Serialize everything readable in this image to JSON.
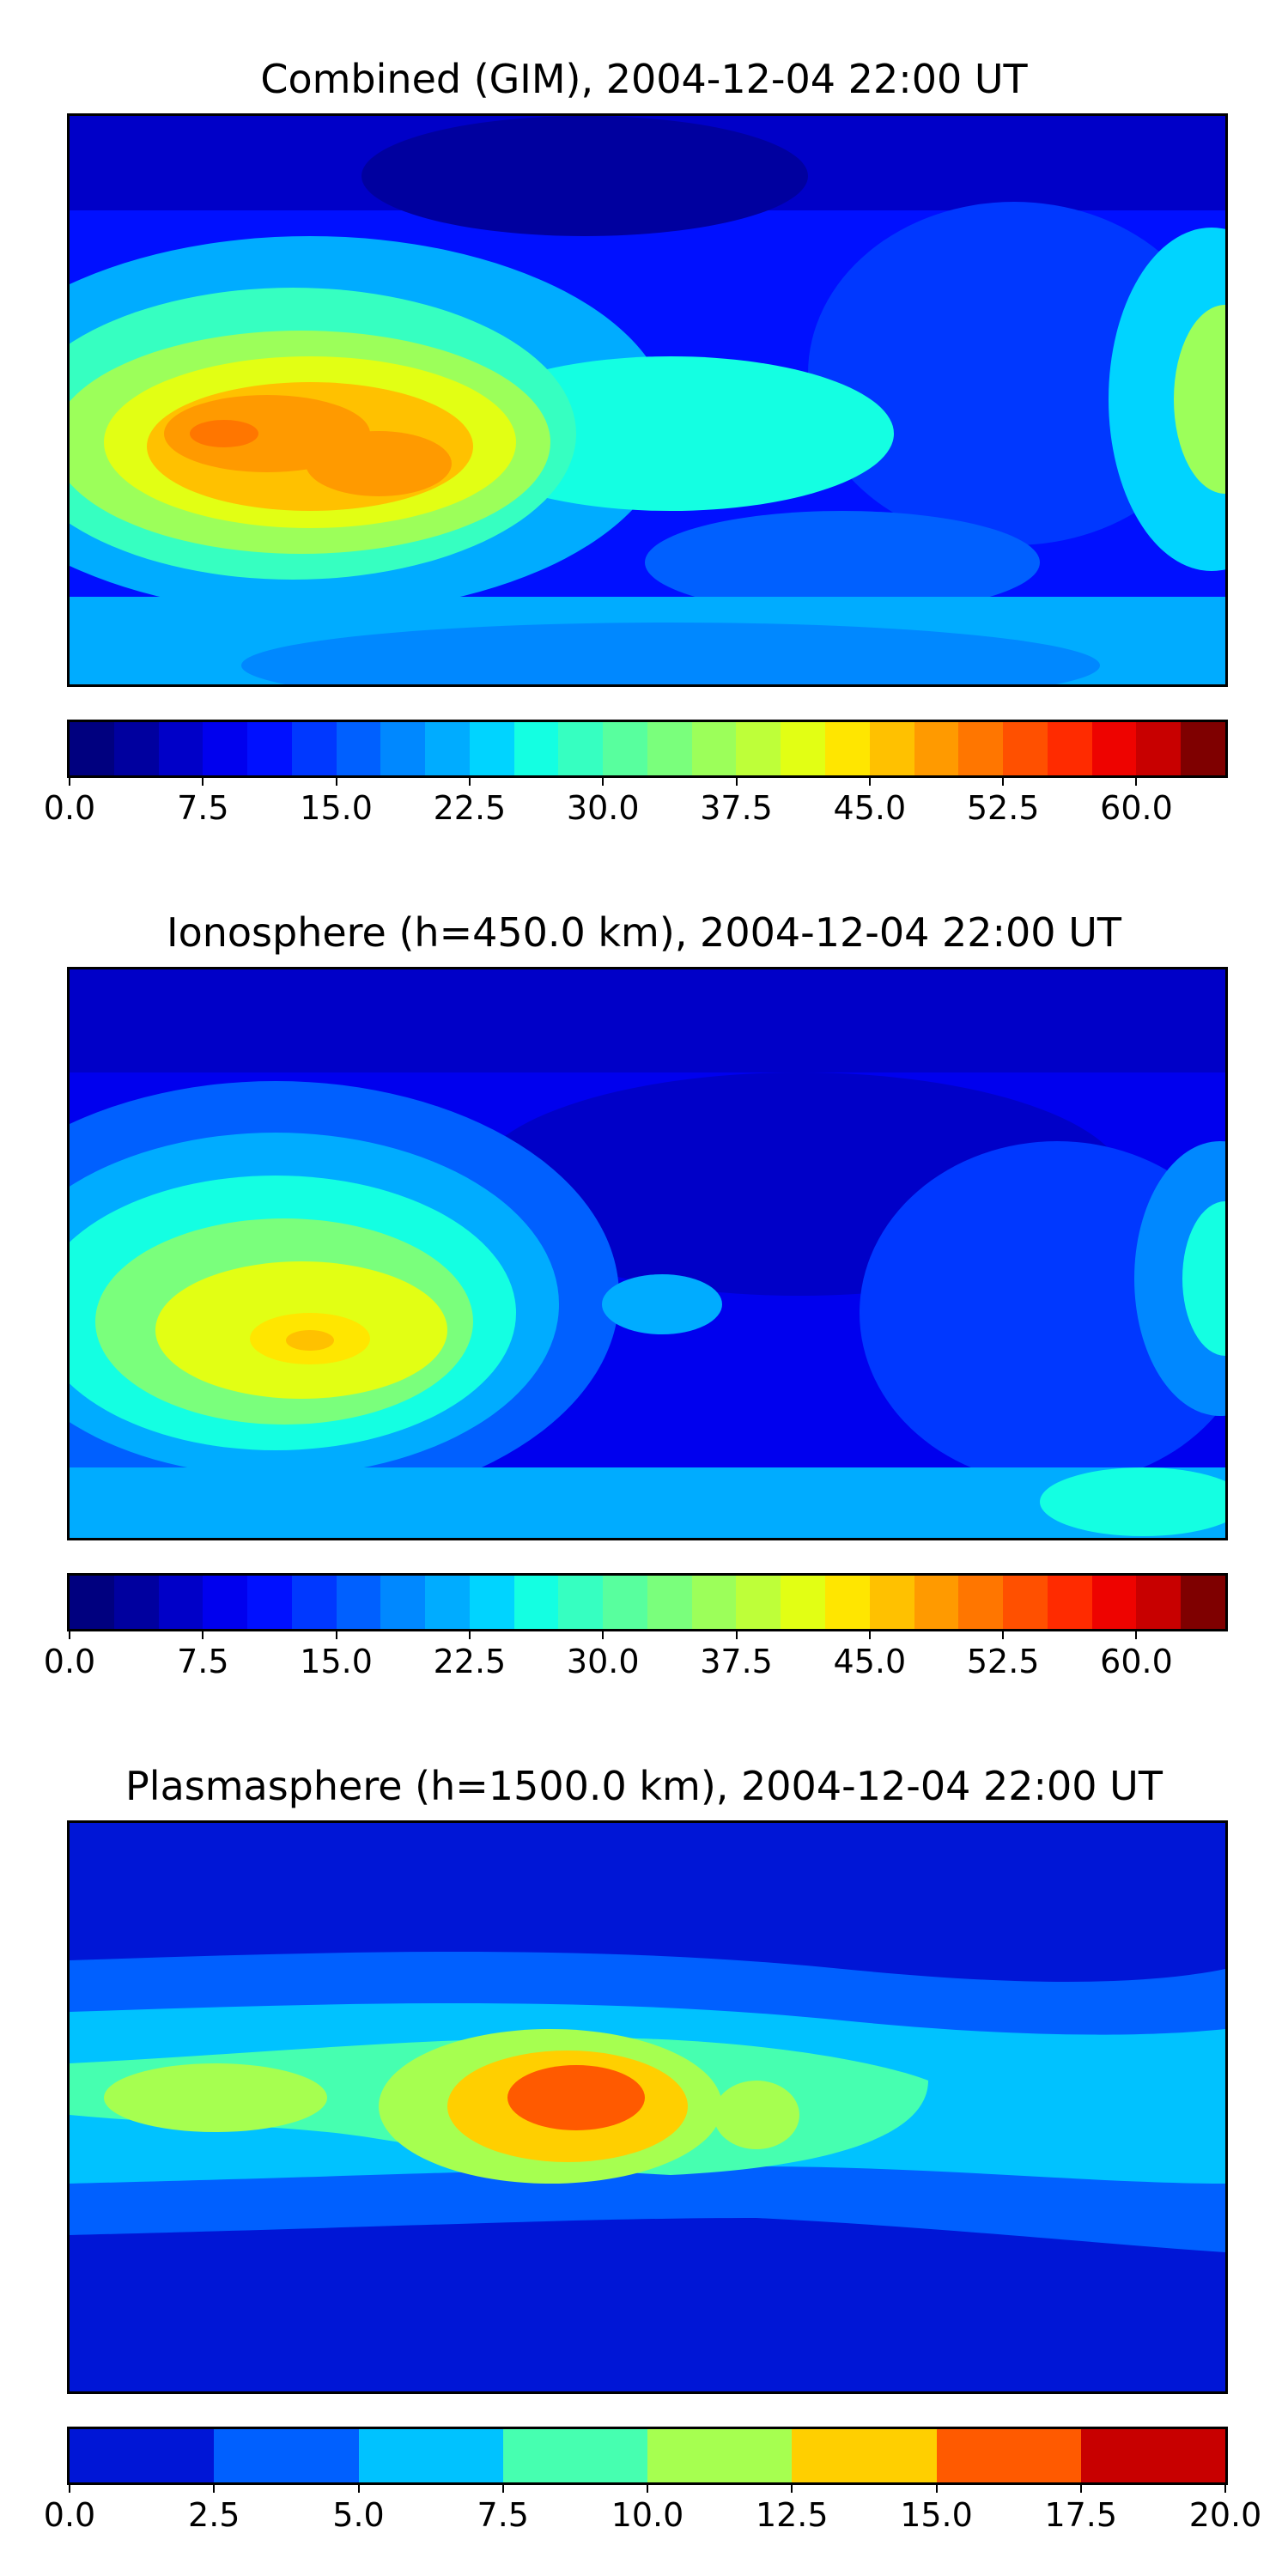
{
  "panels": [
    {
      "title": "Combined (GIM), 2004-12-04 22:00 UT",
      "colorbar": {
        "ticks": [
          "0.0",
          "7.5",
          "15.0",
          "22.5",
          "30.0",
          "37.5",
          "45.0",
          "52.5",
          "60.0"
        ],
        "min": 0,
        "max": 65,
        "levels": 26,
        "tick_values": [
          0,
          7.5,
          15,
          22.5,
          30,
          37.5,
          45,
          52.5,
          60
        ]
      }
    },
    {
      "title": "Ionosphere  (h=450.0 km), 2004-12-04 22:00 UT",
      "colorbar": {
        "ticks": [
          "0.0",
          "7.5",
          "15.0",
          "22.5",
          "30.0",
          "37.5",
          "45.0",
          "52.5",
          "60.0"
        ],
        "min": 0,
        "max": 65,
        "levels": 26,
        "tick_values": [
          0,
          7.5,
          15,
          22.5,
          30,
          37.5,
          45,
          52.5,
          60
        ]
      }
    },
    {
      "title": "Plasmasphere (h=1500.0 km), 2004-12-04 22:00 UT",
      "colorbar": {
        "ticks": [
          "0.0",
          "2.5",
          "5.0",
          "7.5",
          "10.0",
          "12.5",
          "15.0",
          "17.5",
          "20.0"
        ],
        "min": 0,
        "max": 20,
        "levels": 8,
        "tick_values": [
          0,
          2.5,
          5,
          7.5,
          10,
          12.5,
          15,
          17.5,
          20
        ]
      }
    }
  ],
  "colors": {
    "jet26": [
      "#00007f",
      "#00009f",
      "#0000c8",
      "#0000ee",
      "#0010ff",
      "#0038ff",
      "#0060ff",
      "#0088ff",
      "#00acff",
      "#00d4ff",
      "#14ffe2",
      "#36ffc1",
      "#58ff9e",
      "#7aff7c",
      "#9cff5a",
      "#beff39",
      "#e2ff14",
      "#ffe600",
      "#ffc100",
      "#ff9a00",
      "#ff7600",
      "#ff5000",
      "#ff2b00",
      "#ee0300",
      "#c80000",
      "#7f0000"
    ],
    "jet8": [
      "#0016d6",
      "#0060ff",
      "#00c2ff",
      "#46ffb0",
      "#a6ff50",
      "#ffcf00",
      "#ff5a00",
      "#c80000"
    ]
  }
}
